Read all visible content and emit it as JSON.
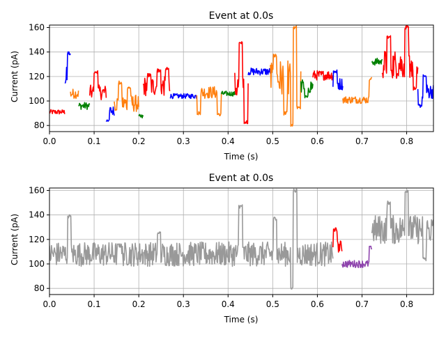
{
  "colors": {
    "blue": "#0000ff",
    "orange": "#ff7f0e",
    "green": "#008000",
    "red": "#ff0000",
    "purple": "#8e44ad",
    "gray": "#999999",
    "grid": "#b0b0b0"
  },
  "chart_data": [
    {
      "type": "line",
      "title": "Event at 0.0s",
      "xlabel": "Time (s)",
      "ylabel": "Current (pA)",
      "xlim": [
        0,
        0.86
      ],
      "ylim": [
        75,
        162
      ],
      "xticks": [
        0.0,
        0.1,
        0.2,
        0.3,
        0.4,
        0.5,
        0.6,
        0.7,
        0.8
      ],
      "xtick_labels": [
        "0.0",
        "0.1",
        "0.2",
        "0.3",
        "0.4",
        "0.5",
        "0.6",
        "0.7",
        "0.8"
      ],
      "yticks": [
        80,
        100,
        120,
        140,
        160
      ],
      "ytick_labels": [
        "80",
        "100",
        "120",
        "140",
        "160"
      ],
      "grid": true,
      "segments": [
        {
          "color": "red",
          "start": 0.0,
          "end": 0.035,
          "level": 91,
          "noise": 2,
          "spikes": []
        },
        {
          "color": "blue",
          "start": 0.035,
          "end": 0.047,
          "level": 118,
          "noise": 10,
          "spikes": [
            [
              0.044,
              139
            ]
          ]
        },
        {
          "color": "orange",
          "start": 0.047,
          "end": 0.065,
          "level": 106,
          "noise": 4,
          "spikes": []
        },
        {
          "color": "green",
          "start": 0.065,
          "end": 0.09,
          "level": 96,
          "noise": 3,
          "spikes": []
        },
        {
          "color": "red",
          "start": 0.09,
          "end": 0.127,
          "level": 107,
          "noise": 6,
          "spikes": [
            [
              0.104,
              124
            ]
          ]
        },
        {
          "color": "blue",
          "start": 0.127,
          "end": 0.145,
          "level": 92,
          "noise": 4,
          "spikes": [
            [
              0.13,
              84
            ]
          ]
        },
        {
          "color": "orange",
          "start": 0.145,
          "end": 0.2,
          "level": 98,
          "noise": 7,
          "spikes": [
            [
              0.158,
              115
            ],
            [
              0.178,
              111
            ]
          ]
        },
        {
          "color": "green",
          "start": 0.2,
          "end": 0.21,
          "level": 87,
          "noise": 2,
          "spikes": []
        },
        {
          "color": "red",
          "start": 0.21,
          "end": 0.27,
          "level": 112,
          "noise": 8,
          "spikes": [
            [
              0.223,
              121
            ],
            [
              0.245,
              125
            ],
            [
              0.263,
              126
            ]
          ]
        },
        {
          "color": "blue",
          "start": 0.27,
          "end": 0.33,
          "level": 104,
          "noise": 2,
          "spikes": []
        },
        {
          "color": "orange",
          "start": 0.33,
          "end": 0.385,
          "level": 107,
          "noise": 5,
          "spikes": [
            [
              0.334,
              90
            ],
            [
              0.38,
              89
            ]
          ]
        },
        {
          "color": "green",
          "start": 0.385,
          "end": 0.415,
          "level": 106,
          "noise": 2,
          "spikes": []
        },
        {
          "color": "red",
          "start": 0.415,
          "end": 0.445,
          "level": 112,
          "noise": 12,
          "spikes": [
            [
              0.428,
              147
            ],
            [
              0.44,
              83
            ]
          ]
        },
        {
          "color": "blue",
          "start": 0.445,
          "end": 0.495,
          "level": 124,
          "noise": 3,
          "spikes": []
        },
        {
          "color": "orange",
          "start": 0.495,
          "end": 0.563,
          "level": 118,
          "noise": 16,
          "spikes": [
            [
              0.505,
              137
            ],
            [
              0.528,
              90
            ],
            [
              0.544,
              80
            ],
            [
              0.55,
              160
            ],
            [
              0.558,
              95
            ]
          ]
        },
        {
          "color": "green",
          "start": 0.563,
          "end": 0.59,
          "level": 112,
          "noise": 6,
          "spikes": [
            [
              0.575,
              103
            ]
          ]
        },
        {
          "color": "red",
          "start": 0.59,
          "end": 0.635,
          "level": 121,
          "noise": 4,
          "spikes": []
        },
        {
          "color": "blue",
          "start": 0.635,
          "end": 0.657,
          "level": 114,
          "noise": 5,
          "spikes": [
            [
              0.64,
              124
            ]
          ]
        },
        {
          "color": "orange",
          "start": 0.657,
          "end": 0.722,
          "level": 101,
          "noise": 3,
          "spikes": [
            [
              0.72,
              118
            ]
          ]
        },
        {
          "color": "green",
          "start": 0.722,
          "end": 0.745,
          "level": 132,
          "noise": 3,
          "spikes": []
        },
        {
          "color": "red",
          "start": 0.745,
          "end": 0.825,
          "level": 130,
          "noise": 12,
          "spikes": [
            [
              0.76,
              152
            ],
            [
              0.8,
              160
            ],
            [
              0.818,
              110
            ]
          ]
        },
        {
          "color": "blue",
          "start": 0.825,
          "end": 0.86,
          "level": 108,
          "noise": 6,
          "spikes": [
            [
              0.83,
              96
            ],
            [
              0.84,
              120
            ]
          ]
        }
      ]
    },
    {
      "type": "line",
      "title": "Event at 0.0s",
      "xlabel": "Time (s)",
      "ylabel": "Current (pA)",
      "xlim": [
        0,
        0.86
      ],
      "ylim": [
        75,
        162
      ],
      "xticks": [
        0.0,
        0.1,
        0.2,
        0.3,
        0.4,
        0.5,
        0.6,
        0.7,
        0.8
      ],
      "xtick_labels": [
        "0.0",
        "0.1",
        "0.2",
        "0.3",
        "0.4",
        "0.5",
        "0.6",
        "0.7",
        "0.8"
      ],
      "yticks": [
        80,
        100,
        120,
        140,
        160
      ],
      "ytick_labels": [
        "80",
        "100",
        "120",
        "140",
        "160"
      ],
      "grid": true,
      "segments": [
        {
          "color": "gray",
          "start": 0.0,
          "end": 0.635,
          "level": 108,
          "noise": 10,
          "spikes": [
            [
              0.044,
              139
            ],
            [
              0.158,
              115
            ],
            [
              0.245,
              125
            ],
            [
              0.428,
              147
            ],
            [
              0.505,
              137
            ],
            [
              0.544,
              80
            ],
            [
              0.55,
              160
            ]
          ]
        },
        {
          "color": "red",
          "start": 0.635,
          "end": 0.655,
          "level": 114,
          "noise": 5,
          "spikes": [
            [
              0.64,
              128
            ]
          ]
        },
        {
          "color": "purple",
          "start": 0.655,
          "end": 0.722,
          "level": 100,
          "noise": 3,
          "spikes": [
            [
              0.72,
              113
            ]
          ]
        },
        {
          "color": "gray",
          "start": 0.722,
          "end": 0.86,
          "level": 128,
          "noise": 12,
          "spikes": [
            [
              0.8,
              160
            ],
            [
              0.76,
              150
            ],
            [
              0.84,
              104
            ]
          ]
        }
      ]
    }
  ]
}
